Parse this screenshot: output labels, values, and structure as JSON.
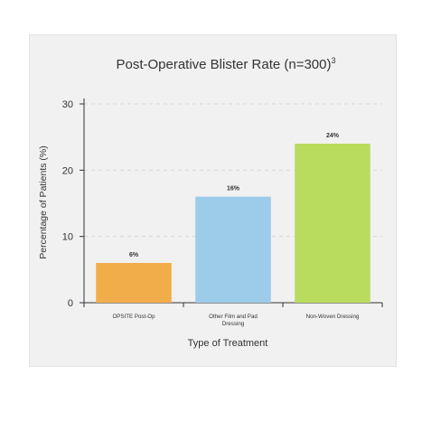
{
  "chart_data": {
    "type": "bar",
    "title": "Post-Operative Blister Rate (n=300)",
    "title_superscript": "3",
    "xlabel": "Type of Treatment",
    "ylabel": "Percentage of Patients (%)",
    "ylim": [
      0,
      30
    ],
    "yticks": [
      "0",
      "10",
      "20",
      "30"
    ],
    "categories": [
      [
        "OPSITE Post-Op"
      ],
      [
        "Other Film and Pad",
        "Dressing"
      ],
      [
        "Non-Woven Dressing"
      ]
    ],
    "values": [
      6,
      16,
      24
    ],
    "data_labels": [
      "6%",
      "16%",
      "24%"
    ],
    "colors": [
      "#f2ad4b",
      "#9dcbea",
      "#b9dc5f"
    ],
    "grid": "horizontal-dashed"
  }
}
